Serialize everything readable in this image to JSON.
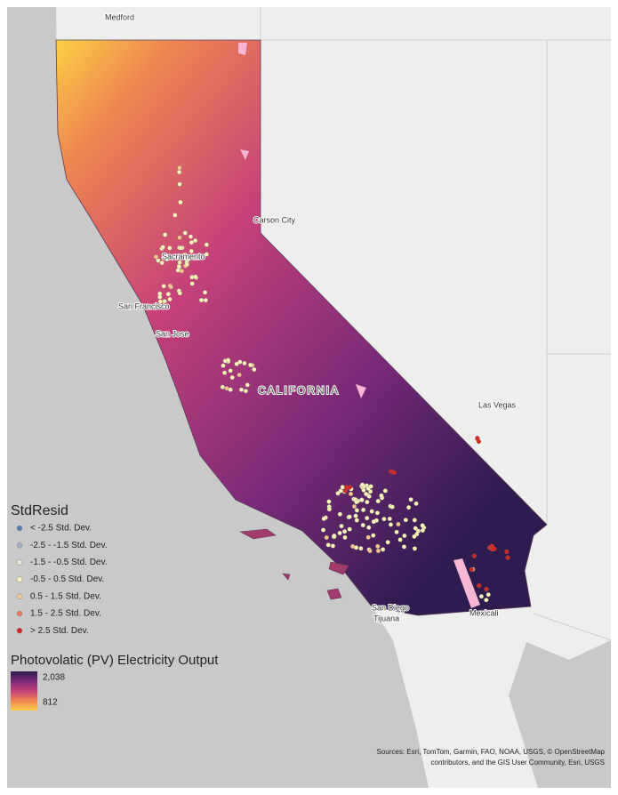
{
  "map": {
    "places": [
      "Medford",
      "Carson City",
      "Sacramento",
      "San Francisco",
      "San Jose",
      "CALIFORNIA",
      "Las Vegas",
      "San Diego",
      "Tijuana",
      "Mexicali"
    ]
  },
  "legend": {
    "title": "StdResid",
    "classes": [
      {
        "label": "< -2.5 Std. Dev.",
        "color": "#4a7cc0"
      },
      {
        "label": "-2.5 - -1.5 Std. Dev.",
        "color": "#9fb0c4"
      },
      {
        "label": "-1.5 - -0.5 Std. Dev.",
        "color": "#e8e6d8"
      },
      {
        "label": "-0.5 - 0.5 Std. Dev.",
        "color": "#fbf6b8"
      },
      {
        "label": "0.5 - 1.5 Std. Dev.",
        "color": "#f6c68a"
      },
      {
        "label": "1.5 - 2.5 Std. Dev.",
        "color": "#ea7a4e"
      },
      {
        "label": "> 2.5 Std. Dev.",
        "color": "#d7261e"
      }
    ]
  },
  "gradient": {
    "title": "Photovolatic (PV) Electricity Output",
    "max": {
      "value": 2038,
      "label": "2,038"
    },
    "min": {
      "value": 812,
      "label": "812"
    },
    "colors": [
      "#2e1b4f",
      "#7b2a78",
      "#c4407a",
      "#f08550",
      "#fbd046"
    ]
  },
  "attribution": [
    "Sources: Esri, TomTom, Garmin, FAO, NOAA, USGS, © OpenStreetMap",
    "contributors, and the GIS User Community, Esri, USGS"
  ]
}
